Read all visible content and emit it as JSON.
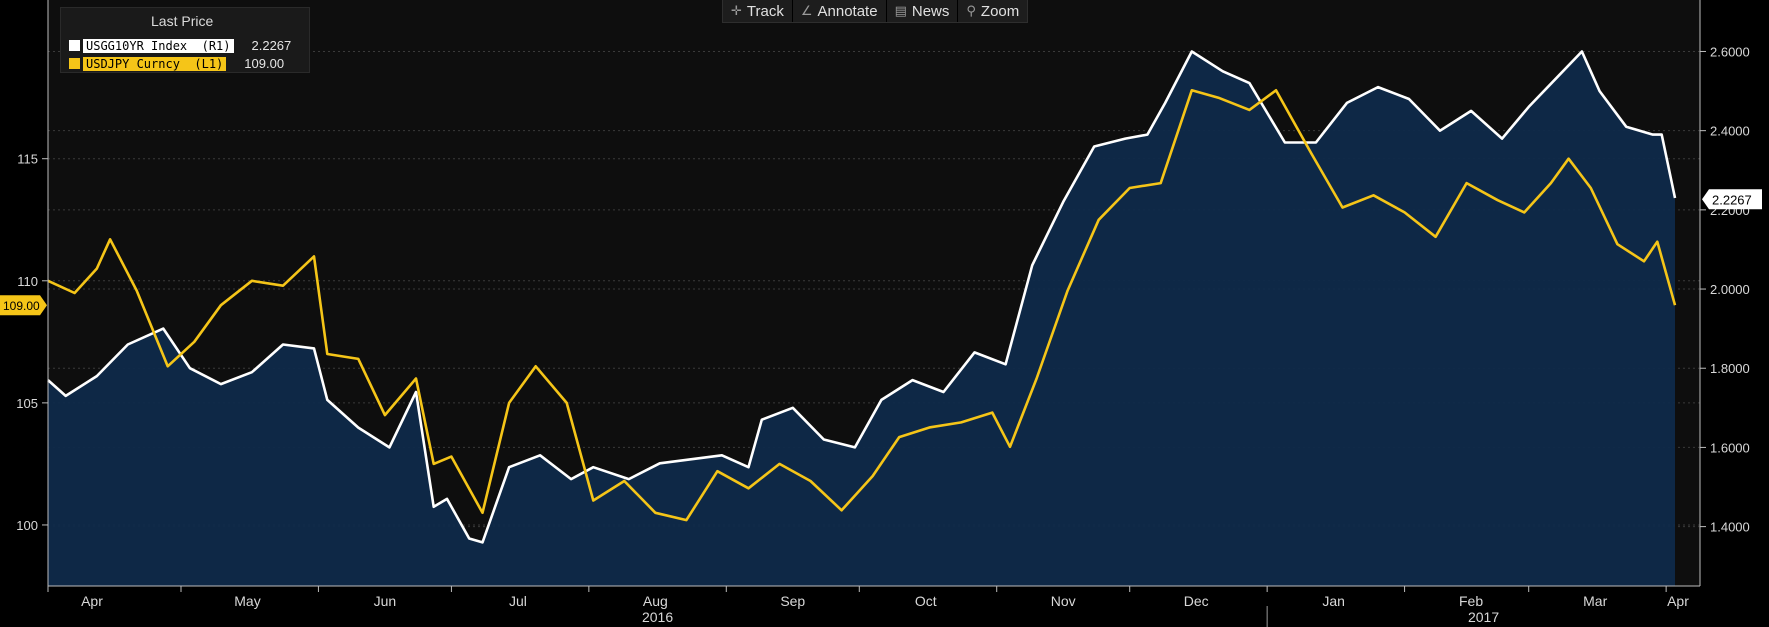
{
  "toolbar": {
    "items": [
      {
        "label": "Track",
        "icon": "crosshair-icon",
        "glyph": "✛"
      },
      {
        "label": "Annotate",
        "icon": "pencil-icon",
        "glyph": "∠"
      },
      {
        "label": "News",
        "icon": "news-icon",
        "glyph": "▤"
      },
      {
        "label": "Zoom",
        "icon": "magnifier-icon",
        "glyph": "⚲"
      }
    ]
  },
  "legend": {
    "title": "Last Price",
    "series": [
      {
        "name": "USGG10YR Index  (R1)",
        "value": "2.2267",
        "color": "#ffffff"
      },
      {
        "name": "USDJPY Curncy  (L1)",
        "value": "109.00",
        "color": "#f5c518"
      }
    ]
  },
  "chart_data": {
    "type": "line",
    "x_months": [
      "Apr",
      "May",
      "Jun",
      "Jul",
      "Aug",
      "Sep",
      "Oct",
      "Nov",
      "Dec",
      "Jan",
      "Feb",
      "Mar",
      "Apr"
    ],
    "x_years": [
      "2016",
      "2017"
    ],
    "x_range": [
      "2016-04-01",
      "2017-04-03"
    ],
    "y_left": {
      "ticks": [
        "100",
        "105",
        "110",
        "115"
      ],
      "range": [
        97.5,
        121.5
      ]
    },
    "y_right": {
      "ticks": [
        "1.4000",
        "1.6000",
        "1.8000",
        "2.0000",
        "2.2000",
        "2.4000",
        "2.6000"
      ],
      "range": [
        1.25,
        2.73
      ]
    },
    "last_labels": {
      "left": "109.00",
      "right": "2.2267"
    },
    "series": [
      {
        "name": "USGG10YR Index (R1)",
        "axis": "right",
        "color": "#ffffff",
        "fill": "#0f2a4a",
        "points": [
          [
            "2016-04-01",
            1.77
          ],
          [
            "2016-04-05",
            1.73
          ],
          [
            "2016-04-12",
            1.78
          ],
          [
            "2016-04-19",
            1.86
          ],
          [
            "2016-04-27",
            1.9
          ],
          [
            "2016-05-03",
            1.8
          ],
          [
            "2016-05-10",
            1.76
          ],
          [
            "2016-05-17",
            1.79
          ],
          [
            "2016-05-24",
            1.86
          ],
          [
            "2016-05-31",
            1.85
          ],
          [
            "2016-06-03",
            1.72
          ],
          [
            "2016-06-10",
            1.65
          ],
          [
            "2016-06-17",
            1.6
          ],
          [
            "2016-06-23",
            1.74
          ],
          [
            "2016-06-27",
            1.45
          ],
          [
            "2016-06-30",
            1.47
          ],
          [
            "2016-07-05",
            1.37
          ],
          [
            "2016-07-08",
            1.36
          ],
          [
            "2016-07-14",
            1.55
          ],
          [
            "2016-07-21",
            1.58
          ],
          [
            "2016-07-28",
            1.52
          ],
          [
            "2016-08-02",
            1.55
          ],
          [
            "2016-08-10",
            1.52
          ],
          [
            "2016-08-17",
            1.56
          ],
          [
            "2016-08-24",
            1.57
          ],
          [
            "2016-08-31",
            1.58
          ],
          [
            "2016-09-06",
            1.55
          ],
          [
            "2016-09-09",
            1.67
          ],
          [
            "2016-09-16",
            1.7
          ],
          [
            "2016-09-23",
            1.62
          ],
          [
            "2016-09-30",
            1.6
          ],
          [
            "2016-10-06",
            1.72
          ],
          [
            "2016-10-13",
            1.77
          ],
          [
            "2016-10-20",
            1.74
          ],
          [
            "2016-10-27",
            1.84
          ],
          [
            "2016-11-03",
            1.81
          ],
          [
            "2016-11-09",
            2.06
          ],
          [
            "2016-11-16",
            2.22
          ],
          [
            "2016-11-23",
            2.36
          ],
          [
            "2016-11-30",
            2.38
          ],
          [
            "2016-12-05",
            2.39
          ],
          [
            "2016-12-09",
            2.47
          ],
          [
            "2016-12-15",
            2.6
          ],
          [
            "2016-12-22",
            2.55
          ],
          [
            "2016-12-28",
            2.52
          ],
          [
            "2017-01-05",
            2.37
          ],
          [
            "2017-01-12",
            2.37
          ],
          [
            "2017-01-19",
            2.47
          ],
          [
            "2017-01-26",
            2.51
          ],
          [
            "2017-02-02",
            2.48
          ],
          [
            "2017-02-09",
            2.4
          ],
          [
            "2017-02-16",
            2.45
          ],
          [
            "2017-02-23",
            2.38
          ],
          [
            "2017-03-01",
            2.46
          ],
          [
            "2017-03-07",
            2.53
          ],
          [
            "2017-03-13",
            2.6
          ],
          [
            "2017-03-17",
            2.5
          ],
          [
            "2017-03-23",
            2.41
          ],
          [
            "2017-03-29",
            2.39
          ],
          [
            "2017-03-31",
            2.39
          ],
          [
            "2017-04-03",
            2.23
          ]
        ]
      },
      {
        "name": "USDJPY Curncy (L1)",
        "axis": "left",
        "color": "#f5c518",
        "points": [
          [
            "2016-04-01",
            110.0
          ],
          [
            "2016-04-07",
            109.5
          ],
          [
            "2016-04-12",
            110.5
          ],
          [
            "2016-04-15",
            111.7
          ],
          [
            "2016-04-21",
            109.6
          ],
          [
            "2016-04-28",
            106.5
          ],
          [
            "2016-05-04",
            107.5
          ],
          [
            "2016-05-10",
            109.0
          ],
          [
            "2016-05-17",
            110.0
          ],
          [
            "2016-05-24",
            109.8
          ],
          [
            "2016-05-31",
            111.0
          ],
          [
            "2016-06-03",
            107.0
          ],
          [
            "2016-06-10",
            106.8
          ],
          [
            "2016-06-16",
            104.5
          ],
          [
            "2016-06-23",
            106.0
          ],
          [
            "2016-06-27",
            102.5
          ],
          [
            "2016-07-01",
            102.8
          ],
          [
            "2016-07-08",
            100.5
          ],
          [
            "2016-07-14",
            105.0
          ],
          [
            "2016-07-20",
            106.5
          ],
          [
            "2016-07-27",
            105.0
          ],
          [
            "2016-08-02",
            101.0
          ],
          [
            "2016-08-09",
            101.8
          ],
          [
            "2016-08-16",
            100.5
          ],
          [
            "2016-08-23",
            100.2
          ],
          [
            "2016-08-30",
            102.2
          ],
          [
            "2016-09-06",
            101.5
          ],
          [
            "2016-09-13",
            102.5
          ],
          [
            "2016-09-20",
            101.8
          ],
          [
            "2016-09-27",
            100.6
          ],
          [
            "2016-10-04",
            102.0
          ],
          [
            "2016-10-10",
            103.6
          ],
          [
            "2016-10-17",
            104.0
          ],
          [
            "2016-10-24",
            104.2
          ],
          [
            "2016-10-31",
            104.6
          ],
          [
            "2016-11-04",
            103.2
          ],
          [
            "2016-11-10",
            106.0
          ],
          [
            "2016-11-17",
            109.6
          ],
          [
            "2016-11-24",
            112.5
          ],
          [
            "2016-12-01",
            113.8
          ],
          [
            "2016-12-08",
            114.0
          ],
          [
            "2016-12-15",
            117.8
          ],
          [
            "2016-12-21",
            117.5
          ],
          [
            "2016-12-28",
            117.0
          ],
          [
            "2017-01-03",
            117.8
          ],
          [
            "2017-01-11",
            115.2
          ],
          [
            "2017-01-18",
            113.0
          ],
          [
            "2017-01-25",
            113.5
          ],
          [
            "2017-02-01",
            112.8
          ],
          [
            "2017-02-08",
            111.8
          ],
          [
            "2017-02-15",
            114.0
          ],
          [
            "2017-02-22",
            113.3
          ],
          [
            "2017-02-28",
            112.8
          ],
          [
            "2017-03-06",
            114.0
          ],
          [
            "2017-03-10",
            115.0
          ],
          [
            "2017-03-15",
            113.8
          ],
          [
            "2017-03-21",
            111.5
          ],
          [
            "2017-03-27",
            110.8
          ],
          [
            "2017-03-30",
            111.6
          ],
          [
            "2017-04-03",
            109.0
          ]
        ]
      }
    ]
  }
}
